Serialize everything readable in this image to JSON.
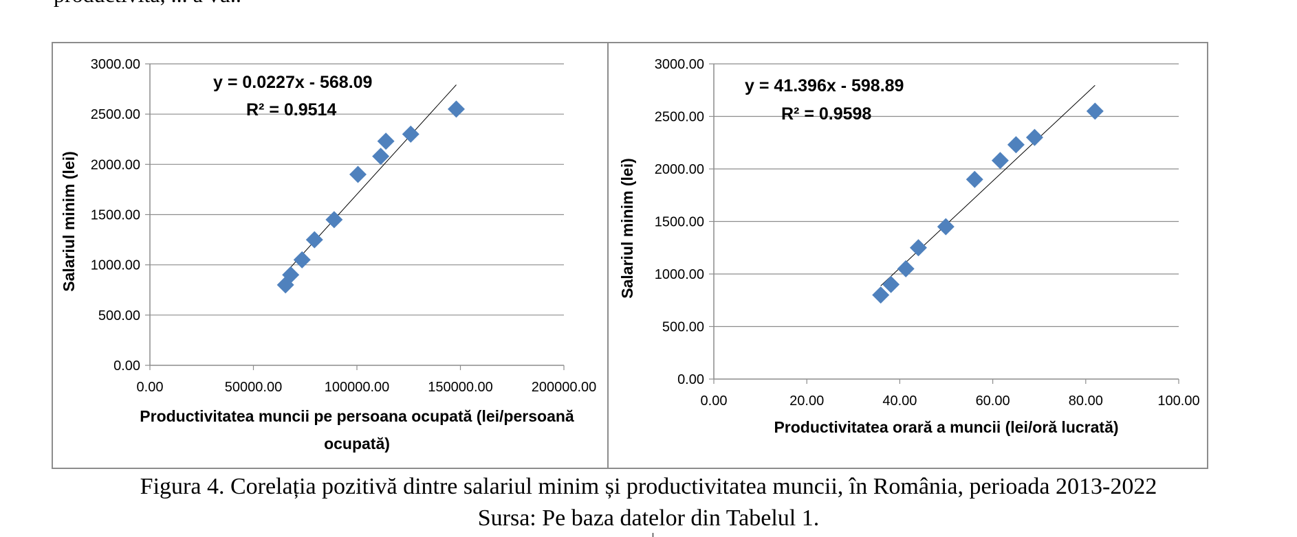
{
  "top_text": "productivita, ... a vu..",
  "caption": {
    "figure": "Figura 4. Corelația pozitivă dintre salariul minim și productivitatea muncii, în România, perioada 2013-2022",
    "source": "Sursa: Pe baza datelor din Tabelul 1."
  },
  "chart_data": [
    {
      "type": "scatter",
      "title": "",
      "xlabel": "Productivitatea muncii pe persoana ocupată (lei/persoană ocupată)",
      "xlabel_lines": [
        "Productivitatea muncii pe persoana ocupată (lei/persoană",
        "ocupată)"
      ],
      "ylabel": "Salariul minim (lei)",
      "xlim": [
        0,
        200000
      ],
      "ylim": [
        0,
        3000
      ],
      "x_ticks": [
        0,
        50000,
        100000,
        150000,
        200000
      ],
      "x_tick_labels": [
        "0.00",
        "50000.00",
        "100000.00",
        "150000.00",
        "200000.00"
      ],
      "y_ticks": [
        0,
        500,
        1000,
        1500,
        2000,
        2500,
        3000
      ],
      "y_tick_labels": [
        "0.00",
        "500.00",
        "1000.00",
        "1500.00",
        "2000.00",
        "2500.00",
        "3000.00"
      ],
      "grid": "horizontal",
      "marker": "diamond",
      "marker_color": "#4f81bd",
      "points": [
        {
          "x": 65500,
          "y": 800
        },
        {
          "x": 68000,
          "y": 900
        },
        {
          "x": 73500,
          "y": 1050
        },
        {
          "x": 79500,
          "y": 1250
        },
        {
          "x": 89000,
          "y": 1450
        },
        {
          "x": 100500,
          "y": 1900
        },
        {
          "x": 111500,
          "y": 2080
        },
        {
          "x": 114000,
          "y": 2230
        },
        {
          "x": 126000,
          "y": 2300
        },
        {
          "x": 148000,
          "y": 2550
        }
      ],
      "trendline": {
        "slope": 0.0227,
        "intercept": -568.09,
        "x_range": [
          65500,
          148000
        ]
      },
      "equation_lines": [
        "y = 0.0227x - 568.09",
        "R² = 0.9514"
      ]
    },
    {
      "type": "scatter",
      "title": "",
      "xlabel": "Productivitatea orară a muncii (lei/oră lucrată)",
      "xlabel_lines": [
        "Productivitatea orară a muncii (lei/oră lucrată)"
      ],
      "ylabel": "Salariul minim (lei)",
      "xlim": [
        0,
        100
      ],
      "ylim": [
        0,
        3000
      ],
      "x_ticks": [
        0,
        20,
        40,
        60,
        80,
        100
      ],
      "x_tick_labels": [
        "0.00",
        "20.00",
        "40.00",
        "60.00",
        "80.00",
        "100.00"
      ],
      "y_ticks": [
        0,
        500,
        1000,
        1500,
        2000,
        2500,
        3000
      ],
      "y_tick_labels": [
        "0.00",
        "500.00",
        "1000.00",
        "1500.00",
        "2000.00",
        "2500.00",
        "3000.00"
      ],
      "grid": "horizontal",
      "marker": "diamond",
      "marker_color": "#4f81bd",
      "points": [
        {
          "x": 35.9,
          "y": 800
        },
        {
          "x": 38.1,
          "y": 900
        },
        {
          "x": 41.3,
          "y": 1050
        },
        {
          "x": 44.0,
          "y": 1250
        },
        {
          "x": 49.9,
          "y": 1450
        },
        {
          "x": 56.1,
          "y": 1900
        },
        {
          "x": 61.6,
          "y": 2080
        },
        {
          "x": 65.0,
          "y": 2230
        },
        {
          "x": 69.0,
          "y": 2300
        },
        {
          "x": 82.0,
          "y": 2550
        }
      ],
      "trendline": {
        "slope": 41.396,
        "intercept": -598.89,
        "x_range": [
          35.9,
          82.0
        ]
      },
      "equation_lines": [
        "y = 41.396x - 598.89",
        "R² = 0.9598"
      ]
    }
  ]
}
